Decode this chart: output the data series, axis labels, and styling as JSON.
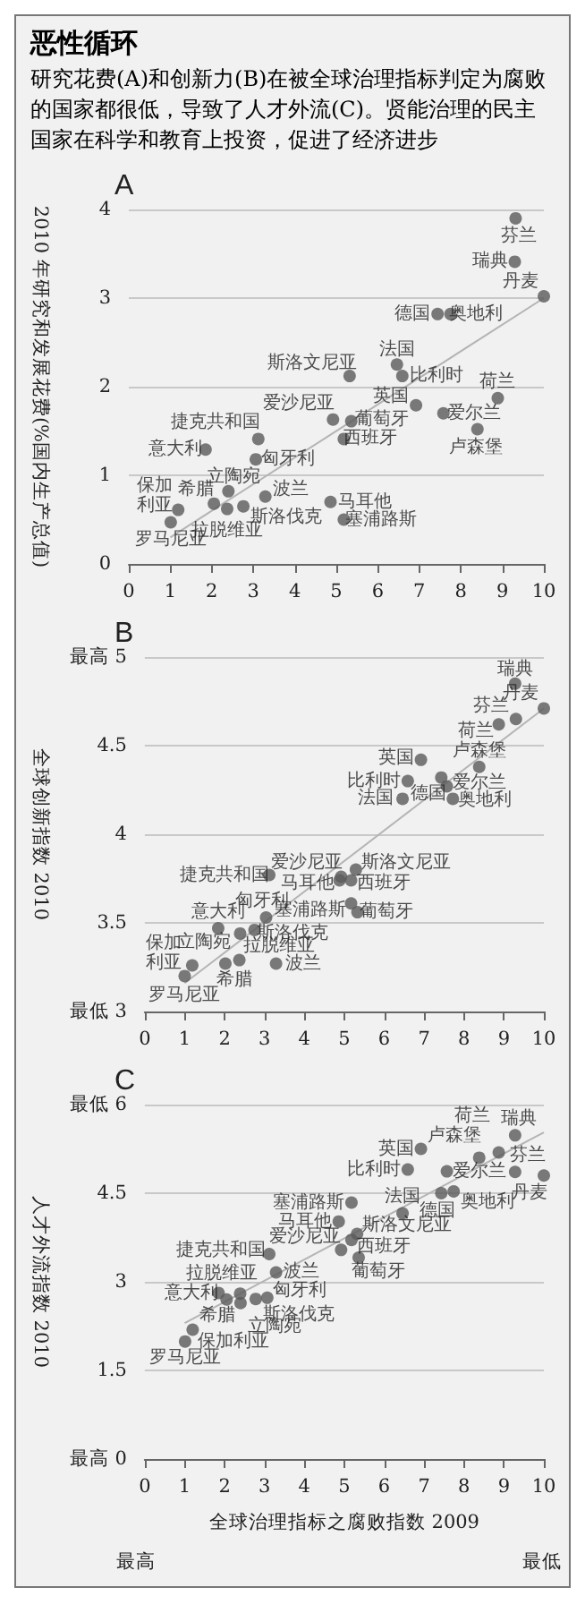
{
  "chart_data": [
    {
      "type": "other",
      "title": "恶性循环",
      "subtitle": "研究花费(A)和创新力(B)在被全球治理指标判定为腐败的国家都很低，导致了人才外流(C)。贤能治理的民主国家在科学和教育上投资，促进了经济进步"
    },
    {
      "type": "scatter",
      "title": "A",
      "ylabel": "2010 年研究和发展花费(%国内生产总值)",
      "xlim": [
        0,
        10
      ],
      "xticks": [
        0,
        1,
        2,
        3,
        4,
        5,
        6,
        7,
        8,
        9,
        10
      ],
      "ylim": [
        0,
        4
      ],
      "yticks": [
        0,
        1,
        2,
        3,
        4
      ],
      "grid": "y",
      "marker": "circle",
      "legend": false,
      "series": [
        {
          "name": "芬兰",
          "color": "#5a5a5a",
          "x": [
            9.32
          ],
          "values": [
            3.9
          ]
        },
        {
          "name": "瑞典",
          "color": "#5a5a5a",
          "x": [
            9.3
          ],
          "values": [
            3.41
          ]
        },
        {
          "name": "丹麦",
          "color": "#5a5a5a",
          "x": [
            10
          ],
          "values": [
            3.02
          ]
        },
        {
          "name": "德国",
          "color": "#5a5a5a",
          "x": [
            7.44
          ],
          "values": [
            2.82
          ]
        },
        {
          "name": "奥地利",
          "color": "#5a5a5a",
          "x": [
            7.75
          ],
          "values": [
            2.82
          ]
        },
        {
          "name": "法国",
          "color": "#5a5a5a",
          "x": [
            6.46
          ],
          "values": [
            2.25
          ]
        },
        {
          "name": "斯洛文尼亚",
          "color": "#5a5a5a",
          "x": [
            5.32
          ],
          "values": [
            2.12
          ]
        },
        {
          "name": "比利时",
          "color": "#5a5a5a",
          "x": [
            6.59
          ],
          "values": [
            2.12
          ]
        },
        {
          "name": "荷兰",
          "color": "#5a5a5a",
          "x": [
            8.89
          ],
          "values": [
            1.87
          ]
        },
        {
          "name": "英国",
          "color": "#5a5a5a",
          "x": [
            6.92
          ],
          "values": [
            1.79
          ]
        },
        {
          "name": "爱尔兰",
          "color": "#5a5a5a",
          "x": [
            7.58
          ],
          "values": [
            1.7
          ]
        },
        {
          "name": "卢森堡",
          "color": "#5a5a5a",
          "x": [
            8.4
          ],
          "values": [
            1.52
          ]
        },
        {
          "name": "爱沙尼亚",
          "color": "#5a5a5a",
          "x": [
            4.92
          ],
          "values": [
            1.63
          ]
        },
        {
          "name": "葡萄牙",
          "color": "#5a5a5a",
          "x": [
            5.36
          ],
          "values": [
            1.61
          ]
        },
        {
          "name": "西班牙",
          "color": "#5a5a5a",
          "x": [
            5.18
          ],
          "values": [
            1.41
          ]
        },
        {
          "name": "捷克共和国",
          "color": "#5a5a5a",
          "x": [
            3.12
          ],
          "values": [
            1.41
          ]
        },
        {
          "name": "意大利",
          "color": "#5a5a5a",
          "x": [
            1.85
          ],
          "values": [
            1.29
          ]
        },
        {
          "name": "匈牙利",
          "color": "#5a5a5a",
          "x": [
            3.06
          ],
          "values": [
            1.18
          ]
        },
        {
          "name": "立陶宛",
          "color": "#5a5a5a",
          "x": [
            2.4
          ],
          "values": [
            0.82
          ]
        },
        {
          "name": "希腊",
          "color": "#5a5a5a",
          "x": [
            2.05
          ],
          "values": [
            0.68
          ]
        },
        {
          "name": "保加利亚",
          "color": "#5a5a5a",
          "x": [
            1.19
          ],
          "values": [
            0.61
          ]
        },
        {
          "name": "拉脱维亚",
          "color": "#5a5a5a",
          "x": [
            2.37
          ],
          "values": [
            0.62
          ]
        },
        {
          "name": "斯洛伐克",
          "color": "#5a5a5a",
          "x": [
            2.76
          ],
          "values": [
            0.65
          ]
        },
        {
          "name": "波兰",
          "color": "#5a5a5a",
          "x": [
            3.29
          ],
          "values": [
            0.76
          ]
        },
        {
          "name": "马耳他",
          "color": "#5a5a5a",
          "x": [
            4.86
          ],
          "values": [
            0.7
          ]
        },
        {
          "name": "塞浦路斯",
          "color": "#5a5a5a",
          "x": [
            5.18
          ],
          "values": [
            0.5
          ]
        },
        {
          "name": "罗马尼亚",
          "color": "#5a5a5a",
          "x": [
            1.01
          ],
          "values": [
            0.47
          ]
        },
        {
          "type": "line",
          "marker": "none",
          "color": "#b4b4b4",
          "x": [
            1,
            10
          ],
          "values": [
            0.3,
            3.0
          ]
        }
      ]
    },
    {
      "type": "scatter",
      "title": "B",
      "ylabel": "全球创新指数 2010",
      "xlim": [
        0,
        10
      ],
      "xticks": [
        0,
        1,
        2,
        3,
        4,
        5,
        6,
        7,
        8,
        9,
        10
      ],
      "ylim": [
        3,
        5
      ],
      "yticks": [
        {
          "value": 3,
          "label": "最低 3"
        },
        3.5,
        4,
        4.5,
        {
          "value": 5,
          "label": "最高 5"
        }
      ],
      "grid": "y",
      "marker": "circle",
      "legend": false,
      "series": [
        {
          "name": "芬兰",
          "color": "#5a5a5a",
          "x": [
            9.3
          ],
          "values": [
            4.65
          ]
        },
        {
          "name": "瑞典",
          "color": "#5a5a5a",
          "x": [
            9.28
          ],
          "values": [
            4.85
          ]
        },
        {
          "name": "丹麦",
          "color": "#5a5a5a",
          "x": [
            10
          ],
          "values": [
            4.71
          ]
        },
        {
          "name": "德国",
          "color": "#5a5a5a",
          "x": [
            7.43
          ],
          "values": [
            4.32
          ]
        },
        {
          "name": "奥地利",
          "color": "#5a5a5a",
          "x": [
            7.72
          ],
          "values": [
            4.2
          ]
        },
        {
          "name": "法国",
          "color": "#5a5a5a",
          "x": [
            6.46
          ],
          "values": [
            4.2
          ]
        },
        {
          "name": "斯洛文尼亚",
          "color": "#5a5a5a",
          "x": [
            5.29
          ],
          "values": [
            3.8
          ]
        },
        {
          "name": "比利时",
          "color": "#5a5a5a",
          "x": [
            6.59
          ],
          "values": [
            4.3
          ]
        },
        {
          "name": "荷兰",
          "color": "#5a5a5a",
          "x": [
            8.87
          ],
          "values": [
            4.62
          ]
        },
        {
          "name": "英国",
          "color": "#5a5a5a",
          "x": [
            6.92
          ],
          "values": [
            4.42
          ]
        },
        {
          "name": "爱尔兰",
          "color": "#5a5a5a",
          "x": [
            7.57
          ],
          "values": [
            4.27
          ]
        },
        {
          "name": "卢森堡",
          "color": "#5a5a5a",
          "x": [
            8.38
          ],
          "values": [
            4.38
          ]
        },
        {
          "name": "爱沙尼亚",
          "color": "#5a5a5a",
          "x": [
            4.92
          ],
          "values": [
            3.76
          ]
        },
        {
          "name": "葡萄牙",
          "color": "#5a5a5a",
          "x": [
            5.33
          ],
          "values": [
            3.56
          ]
        },
        {
          "name": "西班牙",
          "color": "#5a5a5a",
          "x": [
            5.17
          ],
          "values": [
            3.74
          ]
        },
        {
          "name": "捷克共和国",
          "color": "#5a5a5a",
          "x": [
            3.12
          ],
          "values": [
            3.77
          ]
        },
        {
          "name": "意大利",
          "color": "#5a5a5a",
          "x": [
            1.84
          ],
          "values": [
            3.47
          ]
        },
        {
          "name": "匈牙利",
          "color": "#5a5a5a",
          "x": [
            3.04
          ],
          "values": [
            3.53
          ]
        },
        {
          "name": "立陶宛",
          "color": "#5a5a5a",
          "x": [
            2.39
          ],
          "values": [
            3.44
          ]
        },
        {
          "name": "希腊",
          "color": "#5a5a5a",
          "x": [
            2.02
          ],
          "values": [
            3.27
          ]
        },
        {
          "name": "保加利亚",
          "color": "#5a5a5a",
          "x": [
            1.19
          ],
          "values": [
            3.26
          ]
        },
        {
          "name": "拉脱维亚",
          "color": "#5a5a5a",
          "x": [
            2.37
          ],
          "values": [
            3.29
          ]
        },
        {
          "name": "斯洛伐克",
          "color": "#5a5a5a",
          "x": [
            2.75
          ],
          "values": [
            3.46
          ]
        },
        {
          "name": "波兰",
          "color": "#5a5a5a",
          "x": [
            3.29
          ],
          "values": [
            3.27
          ]
        },
        {
          "name": "马耳他",
          "color": "#5a5a5a",
          "x": [
            4.88
          ],
          "values": [
            3.74
          ]
        },
        {
          "name": "塞浦路斯",
          "color": "#5a5a5a",
          "x": [
            5.17
          ],
          "values": [
            3.61
          ]
        },
        {
          "name": "罗马尼亚",
          "color": "#5a5a5a",
          "x": [
            1.0
          ],
          "values": [
            3.2
          ]
        },
        {
          "type": "line",
          "marker": "none",
          "color": "#b4b4b4",
          "x": [
            1,
            10
          ],
          "values": [
            3.16,
            4.71
          ]
        }
      ]
    },
    {
      "type": "scatter",
      "title": "C",
      "ylabel": "人才外流指数 2010",
      "xlabel": "全球治理指标之腐败指数 2009",
      "annotations": [
        "最高",
        "最低"
      ],
      "xlim": [
        0,
        10
      ],
      "xticks": [
        0,
        1,
        2,
        3,
        4,
        5,
        6,
        7,
        8,
        9,
        10
      ],
      "ylim": [
        0,
        6
      ],
      "yticks": [
        {
          "value": 0,
          "label": "最高 0"
        },
        1.5,
        3,
        4.5,
        {
          "value": 6,
          "label": "最低 6"
        }
      ],
      "grid": "y",
      "marker": "circle",
      "legend": false,
      "series": [
        {
          "name": "芬兰",
          "color": "#5a5a5a",
          "x": [
            9.28
          ],
          "values": [
            4.86
          ]
        },
        {
          "name": "瑞典",
          "color": "#5a5a5a",
          "x": [
            9.28
          ],
          "values": [
            5.48
          ]
        },
        {
          "name": "丹麦",
          "color": "#5a5a5a",
          "x": [
            10
          ],
          "values": [
            4.8
          ]
        },
        {
          "name": "德国",
          "color": "#5a5a5a",
          "x": [
            7.43
          ],
          "values": [
            4.5
          ]
        },
        {
          "name": "奥地利",
          "color": "#5a5a5a",
          "x": [
            7.74
          ],
          "values": [
            4.53
          ]
        },
        {
          "name": "法国",
          "color": "#5a5a5a",
          "x": [
            6.46
          ],
          "values": [
            4.16
          ]
        },
        {
          "name": "斯洛文尼亚",
          "color": "#5a5a5a",
          "x": [
            5.32
          ],
          "values": [
            3.81
          ]
        },
        {
          "name": "比利时",
          "color": "#5a5a5a",
          "x": [
            6.59
          ],
          "values": [
            4.9
          ]
        },
        {
          "name": "荷兰",
          "color": "#5a5a5a",
          "x": [
            8.87
          ],
          "values": [
            5.19
          ]
        },
        {
          "name": "英国",
          "color": "#5a5a5a",
          "x": [
            6.92
          ],
          "values": [
            5.25
          ]
        },
        {
          "name": "爱尔兰",
          "color": "#5a5a5a",
          "x": [
            7.57
          ],
          "values": [
            4.87
          ]
        },
        {
          "name": "卢森堡",
          "color": "#5a5a5a",
          "x": [
            8.38
          ],
          "values": [
            5.1
          ]
        },
        {
          "name": "爱沙尼亚",
          "color": "#5a5a5a",
          "x": [
            4.92
          ],
          "values": [
            3.54
          ]
        },
        {
          "name": "葡萄牙",
          "color": "#5a5a5a",
          "x": [
            5.36
          ],
          "values": [
            3.41
          ]
        },
        {
          "name": "西班牙",
          "color": "#5a5a5a",
          "x": [
            5.18
          ],
          "values": [
            3.71
          ]
        },
        {
          "name": "捷克共和国",
          "color": "#5a5a5a",
          "x": [
            3.12
          ],
          "values": [
            3.47
          ]
        },
        {
          "name": "意大利",
          "color": "#5a5a5a",
          "x": [
            1.85
          ],
          "values": [
            2.81
          ]
        },
        {
          "name": "匈牙利",
          "color": "#5a5a5a",
          "x": [
            3.07
          ],
          "values": [
            2.73
          ]
        },
        {
          "name": "立陶宛",
          "color": "#5a5a5a",
          "x": [
            2.4
          ],
          "values": [
            2.64
          ]
        },
        {
          "name": "希腊",
          "color": "#5a5a5a",
          "x": [
            2.05
          ],
          "values": [
            2.7
          ]
        },
        {
          "name": "保加利亚",
          "color": "#5a5a5a",
          "x": [
            1.2
          ],
          "values": [
            2.19
          ]
        },
        {
          "name": "拉脱维亚",
          "color": "#5a5a5a",
          "x": [
            2.39
          ],
          "values": [
            2.8
          ]
        },
        {
          "name": "斯洛伐克",
          "color": "#5a5a5a",
          "x": [
            2.78
          ],
          "values": [
            2.71
          ]
        },
        {
          "name": "波兰",
          "color": "#5a5a5a",
          "x": [
            3.29
          ],
          "values": [
            3.16
          ]
        },
        {
          "name": "马耳他",
          "color": "#5a5a5a",
          "x": [
            4.86
          ],
          "values": [
            4.02
          ]
        },
        {
          "name": "塞浦路斯",
          "color": "#5a5a5a",
          "x": [
            5.18
          ],
          "values": [
            4.34
          ]
        },
        {
          "name": "罗马尼亚",
          "color": "#5a5a5a",
          "x": [
            1.01
          ],
          "values": [
            1.99
          ]
        },
        {
          "type": "line",
          "marker": "none",
          "color": "#b4b4b4",
          "x": [
            1,
            10
          ],
          "values": [
            2.3,
            5.53
          ]
        }
      ]
    }
  ]
}
